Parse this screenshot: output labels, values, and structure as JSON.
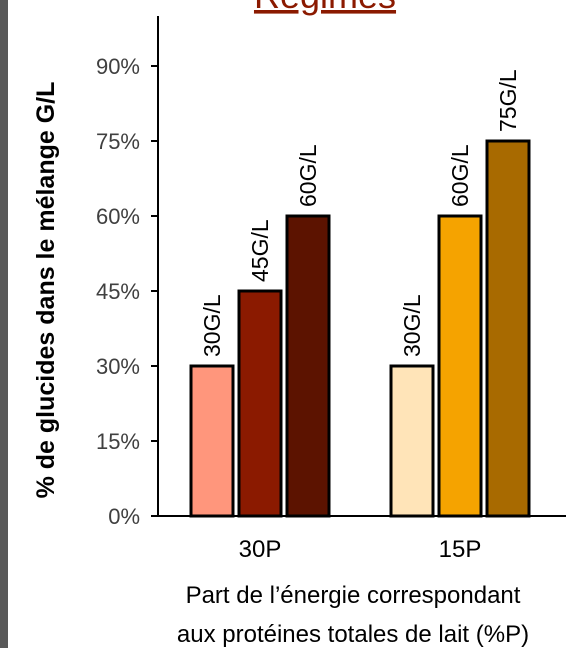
{
  "chart_data": {
    "type": "bar",
    "title": "Régimes",
    "xlabel_lines": [
      "Part de l’énergie correspondant",
      "aux protéines totales de lait (%P)"
    ],
    "ylabel": "% de glucides dans le mélange G/L",
    "ylim": [
      0,
      90
    ],
    "yticks": [
      0,
      15,
      30,
      45,
      60,
      75,
      90
    ],
    "ytick_labels": [
      "0%",
      "15%",
      "30%",
      "45%",
      "60%",
      "75%",
      "90%"
    ],
    "grid": false,
    "groups": [
      {
        "category": "30P",
        "bars": [
          {
            "value": 30,
            "label": "30G/L",
            "color": "#FF967C"
          },
          {
            "value": 45,
            "label": "45G/L",
            "color": "#8B1A00"
          },
          {
            "value": 60,
            "label": "60G/L",
            "color": "#5C1300"
          }
        ]
      },
      {
        "category": "15P",
        "bars": [
          {
            "value": 30,
            "label": "30G/L",
            "color": "#FFE4B8"
          },
          {
            "value": 60,
            "label": "60G/L",
            "color": "#F5A300"
          },
          {
            "value": 75,
            "label": "75G/L",
            "color": "#A86A00"
          }
        ]
      }
    ]
  }
}
